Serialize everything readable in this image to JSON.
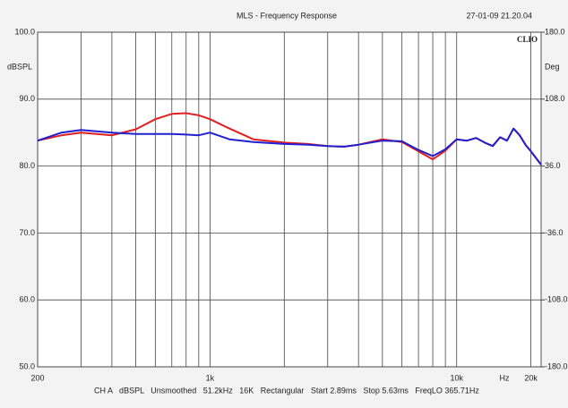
{
  "chart_data": {
    "type": "line",
    "title": "MLS - Frequency Response",
    "timestamp": "27-01-09 21.20.04",
    "brand": "CLIO",
    "y_axis_label": "dBSPL",
    "y2_axis_label": "Deg",
    "x_unit_label": "Hz",
    "footer": "CH A   dBSPL   Unsmoothed   51.2kHz   16K   Rectangular   Start 2.89ms   Stop 5.63ms   FreqLO 365.71Hz",
    "log_x": true,
    "xlim": [
      200,
      22000
    ],
    "xticks": [
      200,
      {
        "value": 1000,
        "label": "1k"
      },
      {
        "value": 10000,
        "label": "10k"
      },
      {
        "value": 20000,
        "label": "20k"
      }
    ],
    "xgrid": [
      300,
      400,
      500,
      600,
      700,
      800,
      900,
      2000,
      3000,
      4000,
      5000,
      6000,
      7000,
      8000,
      9000
    ],
    "ylim": [
      50,
      100
    ],
    "yticks": [
      {
        "value": 50,
        "label": "50.0"
      },
      {
        "value": 60,
        "label": "60.0"
      },
      {
        "value": 70,
        "label": "70.0"
      },
      {
        "value": 80,
        "label": "80.0"
      },
      {
        "value": 90,
        "label": "90.0"
      },
      {
        "value": 100,
        "label": "100.0"
      }
    ],
    "y2lim": [
      -180,
      180
    ],
    "y2ticks": [
      {
        "value": -180,
        "label": "-180.0"
      },
      {
        "value": -108,
        "label": "-108.0"
      },
      {
        "value": -36,
        "label": "-36.0"
      },
      {
        "value": 36,
        "label": "36.0"
      },
      {
        "value": 108,
        "label": "108.0"
      },
      {
        "value": 180,
        "label": "180.0"
      }
    ],
    "x": [
      200,
      250,
      300,
      400,
      500,
      600,
      700,
      800,
      900,
      1000,
      1200,
      1500,
      2000,
      2500,
      3000,
      3500,
      4000,
      5000,
      6000,
      7000,
      8000,
      9000,
      10000,
      11000,
      12000,
      13000,
      14000,
      15000,
      16000,
      17000,
      18000,
      19000,
      20000,
      22000
    ],
    "series": [
      {
        "name": "red",
        "color": "#e02020",
        "values": [
          83.8,
          84.6,
          85,
          84.6,
          85.5,
          87,
          87.8,
          87.9,
          87.6,
          87,
          85.6,
          84,
          83.5,
          83.3,
          83,
          82.9,
          83.2,
          84,
          83.6,
          82.2,
          81,
          82.3,
          84,
          83.8,
          84.2,
          83.5,
          83,
          84.3,
          83.8,
          85.6,
          84.6,
          83.2,
          82.2,
          80.2
        ]
      },
      {
        "name": "blue",
        "color": "#2020d0",
        "values": [
          83.8,
          85,
          85.4,
          85,
          84.8,
          84.8,
          84.8,
          84.7,
          84.6,
          85,
          84,
          83.6,
          83.3,
          83.2,
          83,
          82.9,
          83.2,
          83.8,
          83.7,
          82.4,
          81.5,
          82.5,
          84,
          83.8,
          84.2,
          83.5,
          83,
          84.3,
          83.8,
          85.6,
          84.6,
          83.2,
          82.2,
          80.2
        ]
      }
    ]
  }
}
